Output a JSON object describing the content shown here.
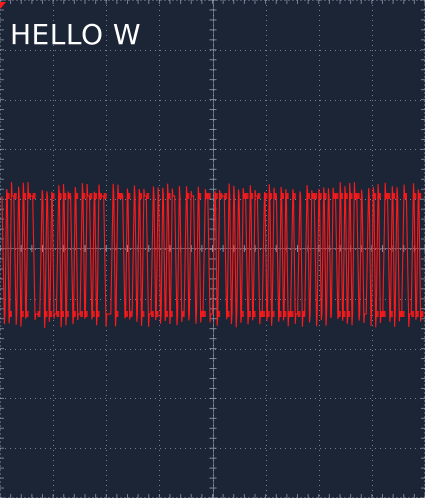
{
  "screen": {
    "caption": "HELLO W",
    "background_color": "#1c2536",
    "grid_color": "#9aa7b8",
    "trace_color": "#ff1a1a"
  },
  "chart_data": {
    "type": "line",
    "grid": true,
    "divisions": {
      "horizontal": 8,
      "vertical": 10
    },
    "levels": {
      "high": 1,
      "low": -1
    },
    "series": [
      {
        "bits": "1010110101011100010101001010110100101101011100010111010010101100101010101101001011010011001011101010101101011001010110101001001001011010101011010101011010010101001101010011001010"
      }
    ]
  }
}
